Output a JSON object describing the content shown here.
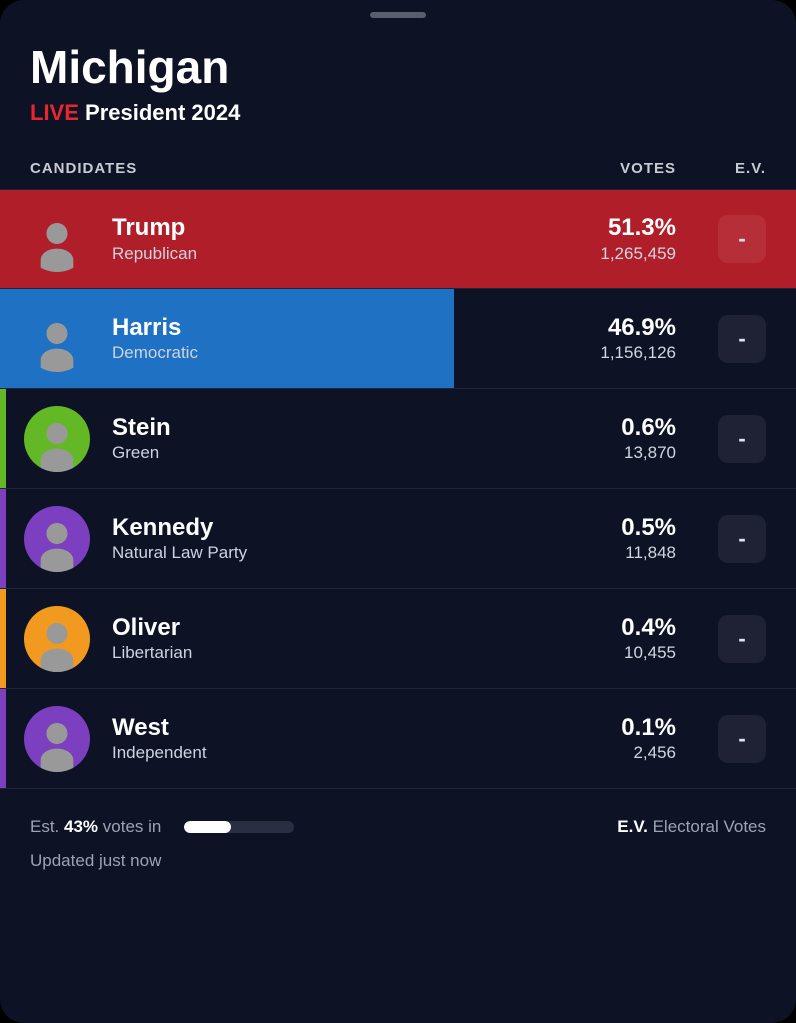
{
  "header": {
    "state": "Michigan",
    "live_label": "LIVE",
    "race_label": "President 2024"
  },
  "columns": {
    "candidates": "CANDIDATES",
    "votes": "VOTES",
    "ev": "E.V."
  },
  "party_colors": {
    "republican": "#b01f29",
    "democratic": "#1f71c4",
    "green": "#62b925",
    "natural_law": "#7b3fbf",
    "libertarian": "#f29a1f",
    "independent": "#7b3fbf"
  },
  "background_color": "#0d1225",
  "candidates": [
    {
      "name": "Trump",
      "party": "Republican",
      "pct": "51.3%",
      "votes": "1,265,459",
      "ev": "-",
      "color_key": "republican",
      "bar_pct": 100
    },
    {
      "name": "Harris",
      "party": "Democratic",
      "pct": "46.9%",
      "votes": "1,156,126",
      "ev": "-",
      "color_key": "democratic",
      "bar_pct": 57
    },
    {
      "name": "Stein",
      "party": "Green",
      "pct": "0.6%",
      "votes": "13,870",
      "ev": "-",
      "color_key": "green",
      "bar_pct": 0
    },
    {
      "name": "Kennedy",
      "party": "Natural Law Party",
      "pct": "0.5%",
      "votes": "11,848",
      "ev": "-",
      "color_key": "natural_law",
      "bar_pct": 0
    },
    {
      "name": "Oliver",
      "party": "Libertarian",
      "pct": "0.4%",
      "votes": "10,455",
      "ev": "-",
      "color_key": "libertarian",
      "bar_pct": 0
    },
    {
      "name": "West",
      "party": "Independent",
      "pct": "0.1%",
      "votes": "2,456",
      "ev": "-",
      "color_key": "independent",
      "bar_pct": 0
    }
  ],
  "footer": {
    "est_prefix": "Est. ",
    "pct_in": "43%",
    "est_suffix": " votes in",
    "progress_pct": 43,
    "ev_abbr": "E.V.",
    "ev_expansion": " Electoral Votes",
    "updated": "Updated just now"
  }
}
